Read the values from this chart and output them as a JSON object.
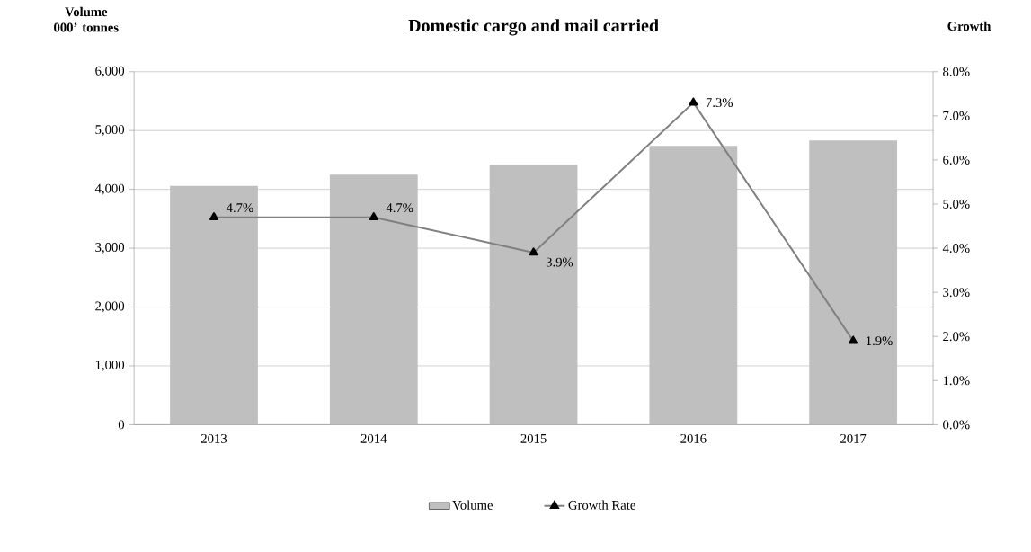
{
  "chart_data": {
    "type": "bar",
    "title": "Domestic cargo and mail carried",
    "ylabel": "Volume 000’ tonnes",
    "y2label": "Growth",
    "categories": [
      "2013",
      "2014",
      "2015",
      "2016",
      "2017"
    ],
    "series": [
      {
        "name": "Volume",
        "color": "#bfbfbf",
        "values": [
          4060,
          4250,
          4420,
          4740,
          4830
        ]
      },
      {
        "name": "Growth Rate",
        "type": "line",
        "axis": "y2",
        "color": "#808080",
        "marker": "triangle",
        "values": [
          4.7,
          4.7,
          3.9,
          7.3,
          1.9
        ],
        "value_labels": [
          "4.7%",
          "4.7%",
          "3.9%",
          "7.3%",
          "1.9%"
        ]
      }
    ],
    "ylim": [
      0,
      6000
    ],
    "yticks": [
      0,
      {
        "value": 1000,
        "label": "1,000"
      },
      {
        "value": 2000,
        "label": "2,000"
      },
      {
        "value": 3000,
        "label": "3,000"
      },
      {
        "value": 4000,
        "label": "4,000"
      },
      {
        "value": 5000,
        "label": "5,000"
      },
      {
        "value": 6000,
        "label": "6,000"
      }
    ],
    "y2lim": [
      0,
      8
    ],
    "y2ticks": [
      {
        "value": 0,
        "label": "0.0%"
      },
      {
        "value": 1,
        "label": "1.0%"
      },
      {
        "value": 2,
        "label": "2.0%"
      },
      {
        "value": 3,
        "label": "3.0%"
      },
      {
        "value": 4,
        "label": "4.0%"
      },
      {
        "value": 5,
        "label": "5.0%"
      },
      {
        "value": 6,
        "label": "6.0%"
      },
      {
        "value": 7,
        "label": "7.0%"
      },
      {
        "value": 8,
        "label": "8.0%"
      }
    ],
    "grid": "y",
    "legend": "bottom"
  }
}
